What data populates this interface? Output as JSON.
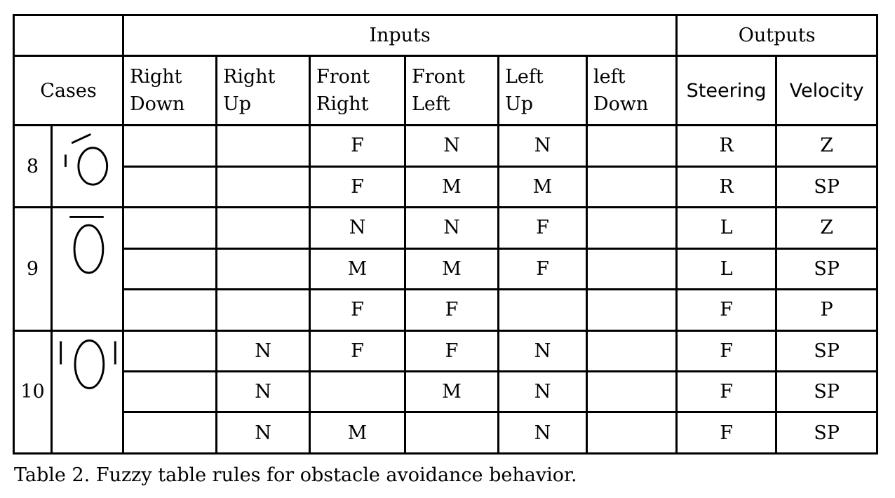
{
  "header": {
    "inputs": "Inputs",
    "outputs": "Outputs",
    "cases": "Cases",
    "columns": [
      {
        "line1": "Right",
        "line2": "Down"
      },
      {
        "line1": "Right",
        "line2": "Up"
      },
      {
        "line1": "Front",
        "line2": "Right"
      },
      {
        "line1": "Front",
        "line2": "Left"
      },
      {
        "line1": "Left",
        "line2": "Up"
      },
      {
        "line1": "left",
        "line2": "Down"
      }
    ],
    "steering": "Steering",
    "velocity": "Velocity"
  },
  "cases": [
    {
      "number": "8",
      "icon": "obstacle-front-and-left-icon",
      "rows": [
        [
          "",
          "",
          "F",
          "N",
          "N",
          "",
          "R",
          "Z"
        ],
        [
          "",
          "",
          "F",
          "M",
          "M",
          "",
          "R",
          "SP"
        ]
      ]
    },
    {
      "number": "9",
      "icon": "obstacle-front-icon",
      "rows": [
        [
          "",
          "",
          "N",
          "N",
          "F",
          "",
          "L",
          "Z"
        ],
        [
          "",
          "",
          "M",
          "M",
          "F",
          "",
          "L",
          "SP"
        ],
        [
          "",
          "",
          "F",
          "F",
          "",
          "",
          "F",
          "P"
        ]
      ]
    },
    {
      "number": "10",
      "icon": "obstacle-both-sides-icon",
      "rows": [
        [
          "",
          "N",
          "F",
          "F",
          "N",
          "",
          "F",
          "SP"
        ],
        [
          "",
          "N",
          "",
          "M",
          "N",
          "",
          "F",
          "SP"
        ],
        [
          "",
          "N",
          "M",
          "",
          "N",
          "",
          "F",
          "SP"
        ]
      ]
    }
  ],
  "caption": "Table 2. Fuzzy table rules for obstacle avoidance behavior."
}
